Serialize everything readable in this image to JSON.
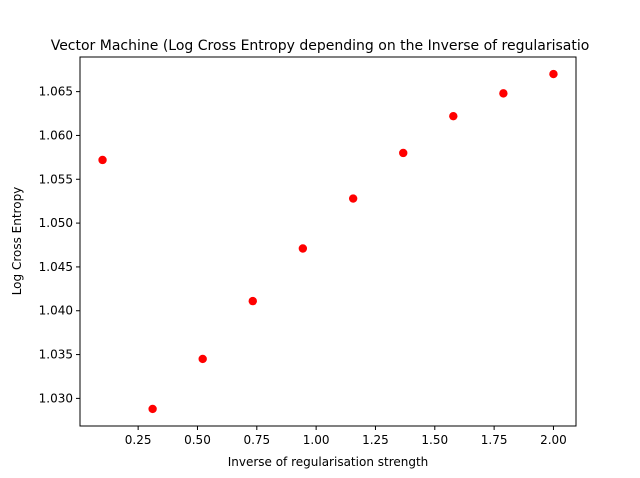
{
  "chart_data": {
    "type": "scatter",
    "title": "Vector Machine (Log Cross Entropy depending on the Inverse of regularisatio",
    "xlabel": "Inverse of regularisation strength",
    "ylabel": "Log Cross Entropy",
    "xlim": [
      0.005,
      2.095
    ],
    "ylim": [
      1.02685,
      1.06895
    ],
    "xticks": [
      "0.25",
      "0.50",
      "0.75",
      "1.00",
      "1.25",
      "1.50",
      "1.75",
      "2.00"
    ],
    "yticks": [
      "1.030",
      "1.035",
      "1.040",
      "1.045",
      "1.050",
      "1.055",
      "1.060",
      "1.065"
    ],
    "grid": false,
    "series": [
      {
        "color": "#ff0000",
        "x": [
          0.1,
          0.311,
          0.522,
          0.733,
          0.944,
          1.156,
          1.367,
          1.578,
          1.789,
          2.0
        ],
        "y": [
          1.0572,
          1.0288,
          1.0345,
          1.0411,
          1.0471,
          1.0528,
          1.058,
          1.0622,
          1.0648,
          1.067
        ]
      }
    ]
  }
}
